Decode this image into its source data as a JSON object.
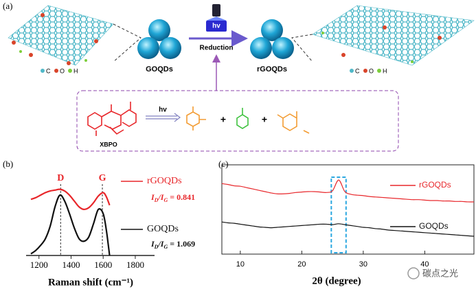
{
  "scheme": {
    "label": "(a)",
    "left_legend": [
      "C",
      "O",
      "H"
    ],
    "right_legend": [
      "C",
      "O",
      "H"
    ],
    "start": "GOQDs",
    "lamp": "hv",
    "arrow": "Reduction",
    "product": "rGOQDs",
    "reagent": "XBPO",
    "reaction_arrow": "hv",
    "plus": [
      "+",
      "+"
    ]
  },
  "watermark": "碳点之光",
  "chart_data": [
    {
      "type": "line",
      "panel_label": "(b)",
      "xlabel": "Raman shift (cm⁻¹)",
      "xlim": [
        1120,
        1920
      ],
      "xticks": [
        1200,
        1400,
        1600,
        1800
      ],
      "ylim": [
        0,
        1
      ],
      "x": [
        1150,
        1180,
        1210,
        1240,
        1270,
        1300,
        1330,
        1360,
        1390,
        1420,
        1450,
        1480,
        1510,
        1540,
        1570,
        1600,
        1620,
        1640
      ],
      "series": [
        {
          "name": "rGOQDs",
          "color": "#e8262a",
          "values": [
            0.67,
            0.69,
            0.72,
            0.75,
            0.77,
            0.78,
            0.79,
            0.77,
            0.72,
            0.65,
            0.58,
            0.55,
            0.57,
            0.63,
            0.71,
            0.75,
            0.7,
            0.6
          ]
        },
        {
          "name": "GOQDs",
          "color": "#111111",
          "values": [
            0.02,
            0.06,
            0.12,
            0.2,
            0.35,
            0.58,
            0.72,
            0.65,
            0.5,
            0.33,
            0.2,
            0.17,
            0.22,
            0.38,
            0.55,
            0.5,
            0.3,
            0.0
          ]
        }
      ],
      "peaks": [
        {
          "label": "D",
          "x": 1335
        },
        {
          "label": "G",
          "x": 1595
        }
      ],
      "ratio_labels": [
        [
          "I",
          "D",
          "/I",
          "G",
          " = 0.841"
        ],
        [
          "I",
          "D",
          "/I",
          "G",
          " = 1.069"
        ]
      ]
    },
    {
      "type": "line",
      "panel_label": "(c)",
      "xlabel": "2θ (degree)",
      "xlim": [
        7,
        48
      ],
      "xticks": [
        10,
        20,
        30,
        40
      ],
      "ylim": [
        0,
        1
      ],
      "frame": true,
      "x": [
        7,
        8,
        9,
        10,
        11,
        12,
        13,
        14,
        15,
        16,
        17,
        18,
        19,
        20,
        21,
        22,
        23,
        24,
        25,
        26,
        27,
        28,
        29,
        30,
        31,
        32,
        33,
        34,
        35,
        36,
        37,
        38,
        39,
        40,
        41,
        42,
        43,
        44,
        45,
        46,
        47,
        48
      ],
      "series": [
        {
          "name": "rGOQDs",
          "color": "#e8262a",
          "values": [
            0.79,
            0.78,
            0.765,
            0.76,
            0.745,
            0.73,
            0.715,
            0.7,
            0.685,
            0.675,
            0.675,
            0.68,
            0.69,
            0.695,
            0.7,
            0.7,
            0.695,
            0.69,
            0.71,
            0.83,
            0.7,
            0.67,
            0.66,
            0.655,
            0.645,
            0.64,
            0.635,
            0.63,
            0.625,
            0.62,
            0.615,
            0.61,
            0.61,
            0.605,
            0.6,
            0.6,
            0.595,
            0.595,
            0.59,
            0.59,
            0.585,
            0.585
          ]
        },
        {
          "name": "GOQDs",
          "color": "#111111",
          "values": [
            0.36,
            0.35,
            0.345,
            0.335,
            0.325,
            0.315,
            0.305,
            0.3,
            0.295,
            0.3,
            0.305,
            0.31,
            0.315,
            0.32,
            0.325,
            0.33,
            0.335,
            0.335,
            0.33,
            0.34,
            0.33,
            0.32,
            0.31,
            0.3,
            0.295,
            0.285,
            0.28,
            0.27,
            0.265,
            0.26,
            0.255,
            0.25,
            0.245,
            0.24,
            0.235,
            0.23,
            0.225,
            0.22,
            0.215,
            0.21,
            0.205,
            0.2
          ]
        }
      ],
      "highlight_x": [
        24.8,
        27.2
      ]
    }
  ]
}
